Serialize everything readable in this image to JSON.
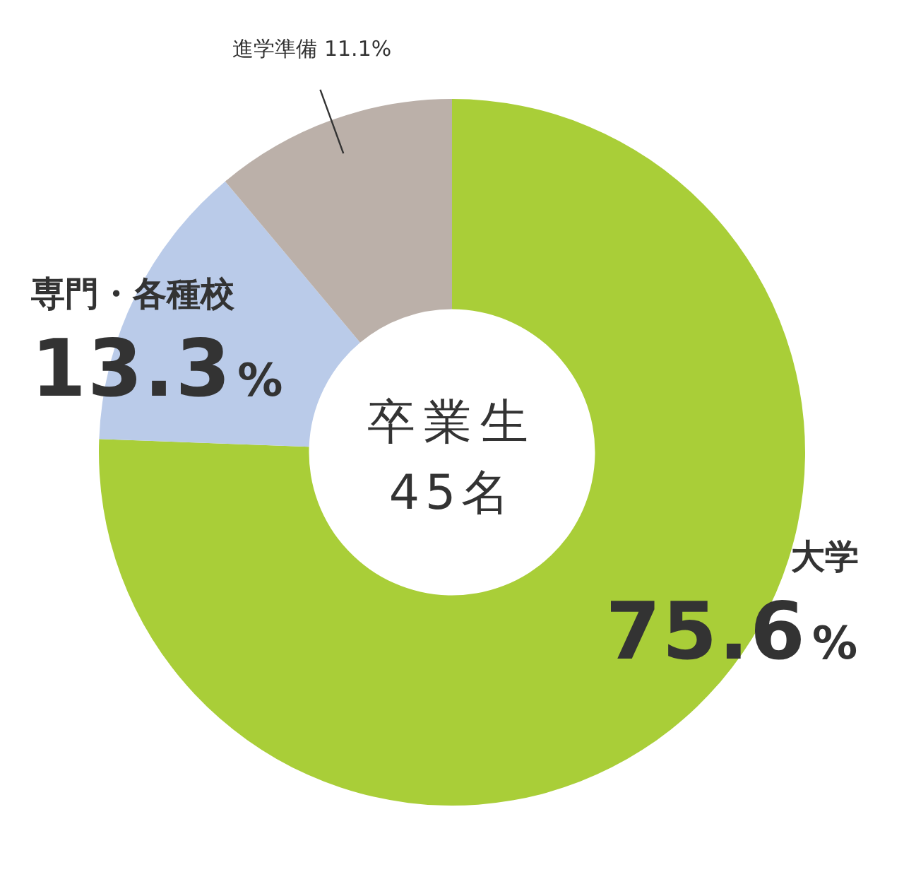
{
  "chart_data": {
    "type": "donut",
    "title": "卒業生",
    "subtitle": "45名",
    "categories": [
      "大学",
      "専門・各種校",
      "進学準備"
    ],
    "values": [
      75.6,
      13.3,
      11.1
    ],
    "colors": [
      "#a9ce38",
      "#bacbe9",
      "#bbb0a9"
    ],
    "value_labels": [
      "75.6%",
      "13.3%",
      "11.1%"
    ]
  }
}
